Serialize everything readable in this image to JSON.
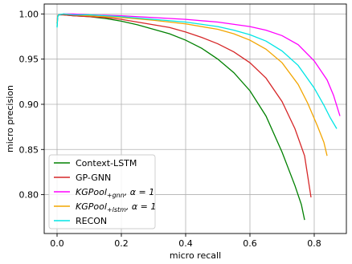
{
  "chart_data": {
    "type": "line",
    "xlabel": "micro recall",
    "ylabel": "micro precision",
    "xlim": [
      -0.04,
      0.9
    ],
    "ylim": [
      0.757,
      1.011
    ],
    "xticks": [
      "0.0",
      "0.2",
      "0.4",
      "0.6",
      "0.8"
    ],
    "xtick_values": [
      0.0,
      0.2,
      0.4,
      0.6,
      0.8
    ],
    "yticks": [
      "0.80",
      "0.85",
      "0.90",
      "0.95",
      "1.00"
    ],
    "ytick_values": [
      0.8,
      0.85,
      0.9,
      0.95,
      1.0
    ],
    "grid": true,
    "legend_placement": "lower-left",
    "series": [
      {
        "name": "Context-LSTM",
        "color": "#008000",
        "x": [
          0.0,
          0.002,
          0.005,
          0.02,
          0.05,
          0.1,
          0.15,
          0.2,
          0.25,
          0.3,
          0.35,
          0.4,
          0.45,
          0.5,
          0.55,
          0.6,
          0.65,
          0.7,
          0.74,
          0.76,
          0.77
        ],
        "y": [
          0.986,
          0.997,
          0.999,
          0.999,
          0.998,
          0.997,
          0.995,
          0.992,
          0.988,
          0.983,
          0.978,
          0.971,
          0.962,
          0.95,
          0.935,
          0.915,
          0.887,
          0.847,
          0.81,
          0.789,
          0.772
        ]
      },
      {
        "name": "GP-GNN",
        "series_label": {
          "base": "GP-GNN",
          "sub": "",
          "suffix": ""
        },
        "color": "#d62728",
        "x": [
          0.0,
          0.002,
          0.005,
          0.02,
          0.05,
          0.1,
          0.15,
          0.2,
          0.25,
          0.3,
          0.35,
          0.4,
          0.45,
          0.5,
          0.55,
          0.6,
          0.65,
          0.7,
          0.74,
          0.77,
          0.79
        ],
        "y": [
          0.99,
          0.998,
          0.999,
          0.999,
          0.998,
          0.997,
          0.996,
          0.994,
          0.991,
          0.988,
          0.985,
          0.98,
          0.974,
          0.967,
          0.958,
          0.946,
          0.929,
          0.903,
          0.873,
          0.843,
          0.797
        ]
      },
      {
        "name": "KGPool+gnn, α = 1",
        "color": "#ff00ff",
        "x": [
          0.0,
          0.002,
          0.005,
          0.02,
          0.05,
          0.1,
          0.2,
          0.3,
          0.4,
          0.5,
          0.6,
          0.65,
          0.7,
          0.75,
          0.8,
          0.84,
          0.86,
          0.88
        ],
        "y": [
          0.99,
          0.998,
          0.999,
          1.0,
          1.0,
          0.999,
          0.998,
          0.996,
          0.994,
          0.991,
          0.986,
          0.982,
          0.976,
          0.966,
          0.948,
          0.927,
          0.91,
          0.887
        ]
      },
      {
        "name": "KGPool+lstm, α = 1",
        "color": "#f2a500",
        "x": [
          0.0,
          0.002,
          0.005,
          0.02,
          0.05,
          0.1,
          0.2,
          0.3,
          0.4,
          0.5,
          0.55,
          0.6,
          0.65,
          0.7,
          0.75,
          0.78,
          0.81,
          0.83,
          0.84
        ],
        "y": [
          0.99,
          0.998,
          0.999,
          1.0,
          0.999,
          0.998,
          0.996,
          0.993,
          0.989,
          0.983,
          0.978,
          0.971,
          0.961,
          0.946,
          0.922,
          0.901,
          0.876,
          0.858,
          0.843
        ]
      },
      {
        "name": "RECON",
        "color": "#00e5e5",
        "x": [
          0.0,
          0.002,
          0.005,
          0.02,
          0.05,
          0.1,
          0.2,
          0.3,
          0.4,
          0.5,
          0.55,
          0.6,
          0.65,
          0.7,
          0.75,
          0.8,
          0.83,
          0.85,
          0.87
        ],
        "y": [
          0.985,
          0.997,
          0.999,
          1.0,
          0.999,
          0.999,
          0.997,
          0.994,
          0.991,
          0.986,
          0.982,
          0.977,
          0.97,
          0.959,
          0.943,
          0.918,
          0.899,
          0.885,
          0.873
        ]
      }
    ],
    "legend": [
      {
        "series": 0,
        "base": "Context-LSTM",
        "sub": "",
        "suffix": ""
      },
      {
        "series": 1,
        "base": "GP-GNN",
        "sub": "",
        "suffix": ""
      },
      {
        "series": 2,
        "base": "KGPool",
        "sub": "+gnn",
        "suffix": ", α = 1"
      },
      {
        "series": 3,
        "base": "KGPool",
        "sub": "+lstm",
        "suffix": ", α = 1"
      },
      {
        "series": 4,
        "base": "RECON",
        "sub": "",
        "suffix": ""
      }
    ]
  }
}
